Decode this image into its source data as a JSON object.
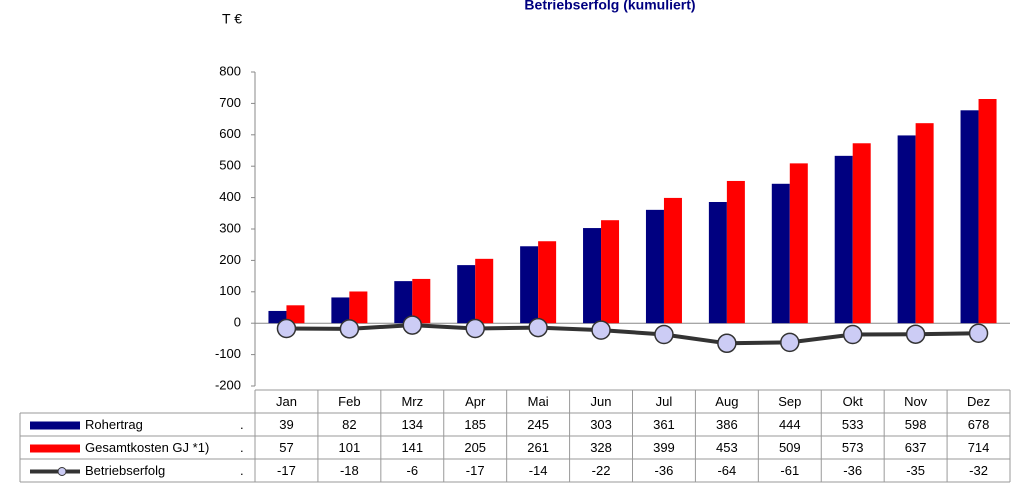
{
  "chart_data": {
    "type": "bar",
    "title": "Betriebserfolg (kumuliert)",
    "y_label": "T €",
    "categories": [
      "Jan",
      "Feb",
      "Mrz",
      "Apr",
      "Mai",
      "Jun",
      "Jul",
      "Aug",
      "Sep",
      "Okt",
      "Nov",
      "Dez"
    ],
    "series": [
      {
        "name": "Rohertrag",
        "type": "bar",
        "color": "#000080",
        "values": [
          39,
          82,
          134,
          185,
          245,
          303,
          361,
          386,
          444,
          533,
          598,
          678
        ]
      },
      {
        "name": "Gesamtkosten GJ *1)",
        "type": "bar",
        "color": "#ff0000",
        "values": [
          57,
          101,
          141,
          205,
          261,
          328,
          399,
          453,
          509,
          573,
          637,
          714
        ]
      },
      {
        "name": "Betriebserfolg",
        "type": "line",
        "color": "#333333",
        "marker_color": "#ccccf5",
        "values": [
          -17,
          -18,
          -6,
          -17,
          -14,
          -22,
          -36,
          -64,
          -61,
          -36,
          -35,
          -32
        ]
      }
    ],
    "table_marker": ".",
    "ylim": [
      -200,
      800
    ],
    "yticks": [
      -200,
      -100,
      0,
      100,
      200,
      300,
      400,
      500,
      600,
      700,
      800
    ]
  }
}
